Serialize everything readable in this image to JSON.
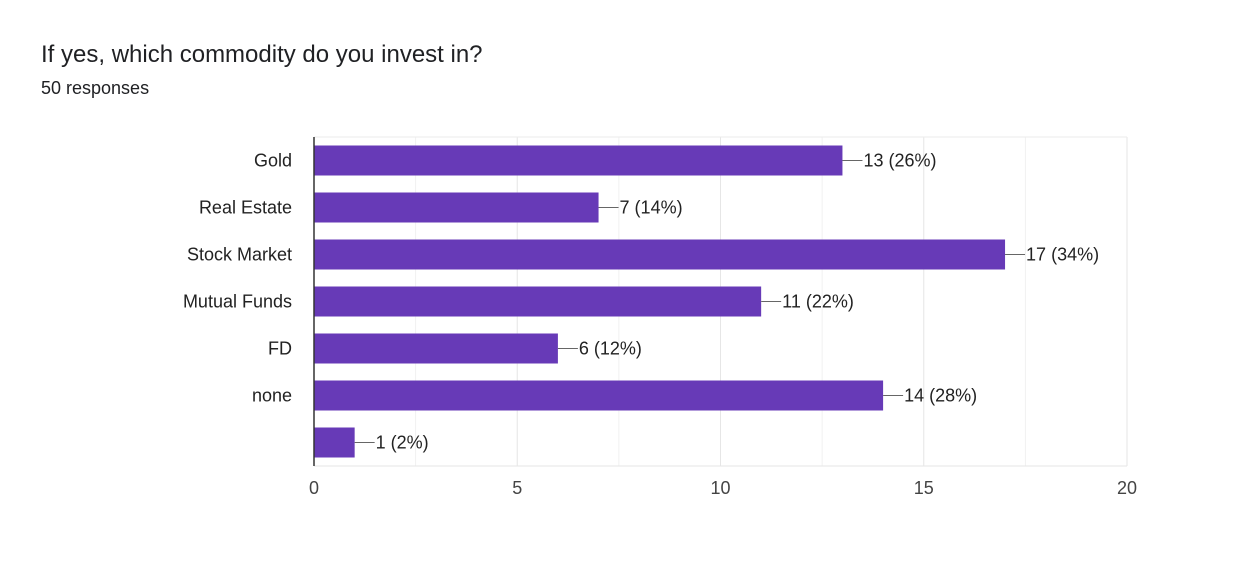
{
  "header": {
    "title": "If yes, which commodity do you invest in?",
    "responses": "50 responses"
  },
  "chart_data": {
    "type": "bar",
    "orientation": "horizontal",
    "categories": [
      "Gold",
      "Real Estate",
      "Stock Market",
      "Mutual Funds",
      "FD",
      "none",
      ""
    ],
    "values": [
      13,
      7,
      17,
      11,
      6,
      14,
      1
    ],
    "value_labels": [
      "13 (26%)",
      "7 (14%)",
      "17 (34%)",
      "11 (22%)",
      "6 (12%)",
      "14 (28%)",
      "1 (2%)"
    ],
    "xlim": [
      0,
      20
    ],
    "xticks": [
      0,
      5,
      10,
      15,
      20
    ],
    "bar_color": "#673ab7",
    "grid": true
  }
}
